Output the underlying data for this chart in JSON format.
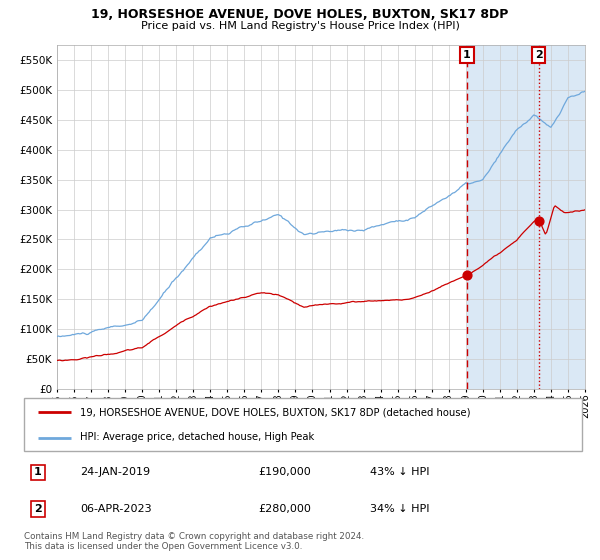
{
  "title": "19, HORSESHOE AVENUE, DOVE HOLES, BUXTON, SK17 8DP",
  "subtitle": "Price paid vs. HM Land Registry's House Price Index (HPI)",
  "ylim": [
    0,
    575000
  ],
  "yticks": [
    0,
    50000,
    100000,
    150000,
    200000,
    250000,
    300000,
    350000,
    400000,
    450000,
    500000,
    550000
  ],
  "ytick_labels": [
    "£0",
    "£50K",
    "£100K",
    "£150K",
    "£200K",
    "£250K",
    "£300K",
    "£350K",
    "£400K",
    "£450K",
    "£500K",
    "£550K"
  ],
  "hpi_color": "#6fa8dc",
  "price_color": "#cc0000",
  "bg_color": "#ffffff",
  "grid_color": "#cccccc",
  "shade_color": "#dae8f5",
  "sale1_date": 2019.07,
  "sale1_price": 190000,
  "sale2_date": 2023.28,
  "sale2_price": 280000,
  "legend1": "19, HORSESHOE AVENUE, DOVE HOLES, BUXTON, SK17 8DP (detached house)",
  "legend2": "HPI: Average price, detached house, High Peak",
  "note1_num": "1",
  "note1_date": "24-JAN-2019",
  "note1_price": "£190,000",
  "note1_hpi": "43% ↓ HPI",
  "note2_num": "2",
  "note2_date": "06-APR-2023",
  "note2_price": "£280,000",
  "note2_hpi": "34% ↓ HPI",
  "copyright": "Contains HM Land Registry data © Crown copyright and database right 2024.\nThis data is licensed under the Open Government Licence v3.0.",
  "xmin": 1995.0,
  "xmax": 2026.0
}
